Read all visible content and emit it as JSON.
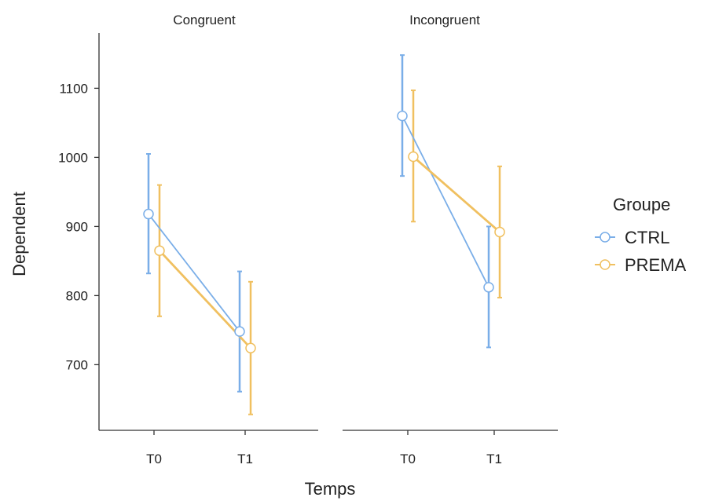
{
  "chart_data": {
    "type": "line",
    "xlabel": "Temps",
    "ylabel": "Dependent",
    "categories": [
      "T0",
      "T1"
    ],
    "ylim": [
      605,
      1180
    ],
    "yticks": [
      700,
      800,
      900,
      1000,
      1100
    ],
    "legend": {
      "title": "Groupe",
      "placement": "right"
    },
    "colors": {
      "CTRL": "#7aaee8",
      "PREMA": "#f0c060"
    },
    "panels": [
      {
        "title": "Congruent",
        "series": [
          {
            "name": "CTRL",
            "values": [
              918,
              748
            ],
            "lower": [
              832,
              661
            ],
            "upper": [
              1005,
              835
            ]
          },
          {
            "name": "PREMA",
            "values": [
              865,
              724
            ],
            "lower": [
              770,
              628
            ],
            "upper": [
              960,
              820
            ]
          }
        ]
      },
      {
        "title": "Incongruent",
        "series": [
          {
            "name": "CTRL",
            "values": [
              1060,
              812
            ],
            "lower": [
              973,
              725
            ],
            "upper": [
              1148,
              900
            ]
          },
          {
            "name": "PREMA",
            "values": [
              1001,
              892
            ],
            "lower": [
              907,
              797
            ],
            "upper": [
              1097,
              987
            ]
          }
        ]
      }
    ]
  }
}
